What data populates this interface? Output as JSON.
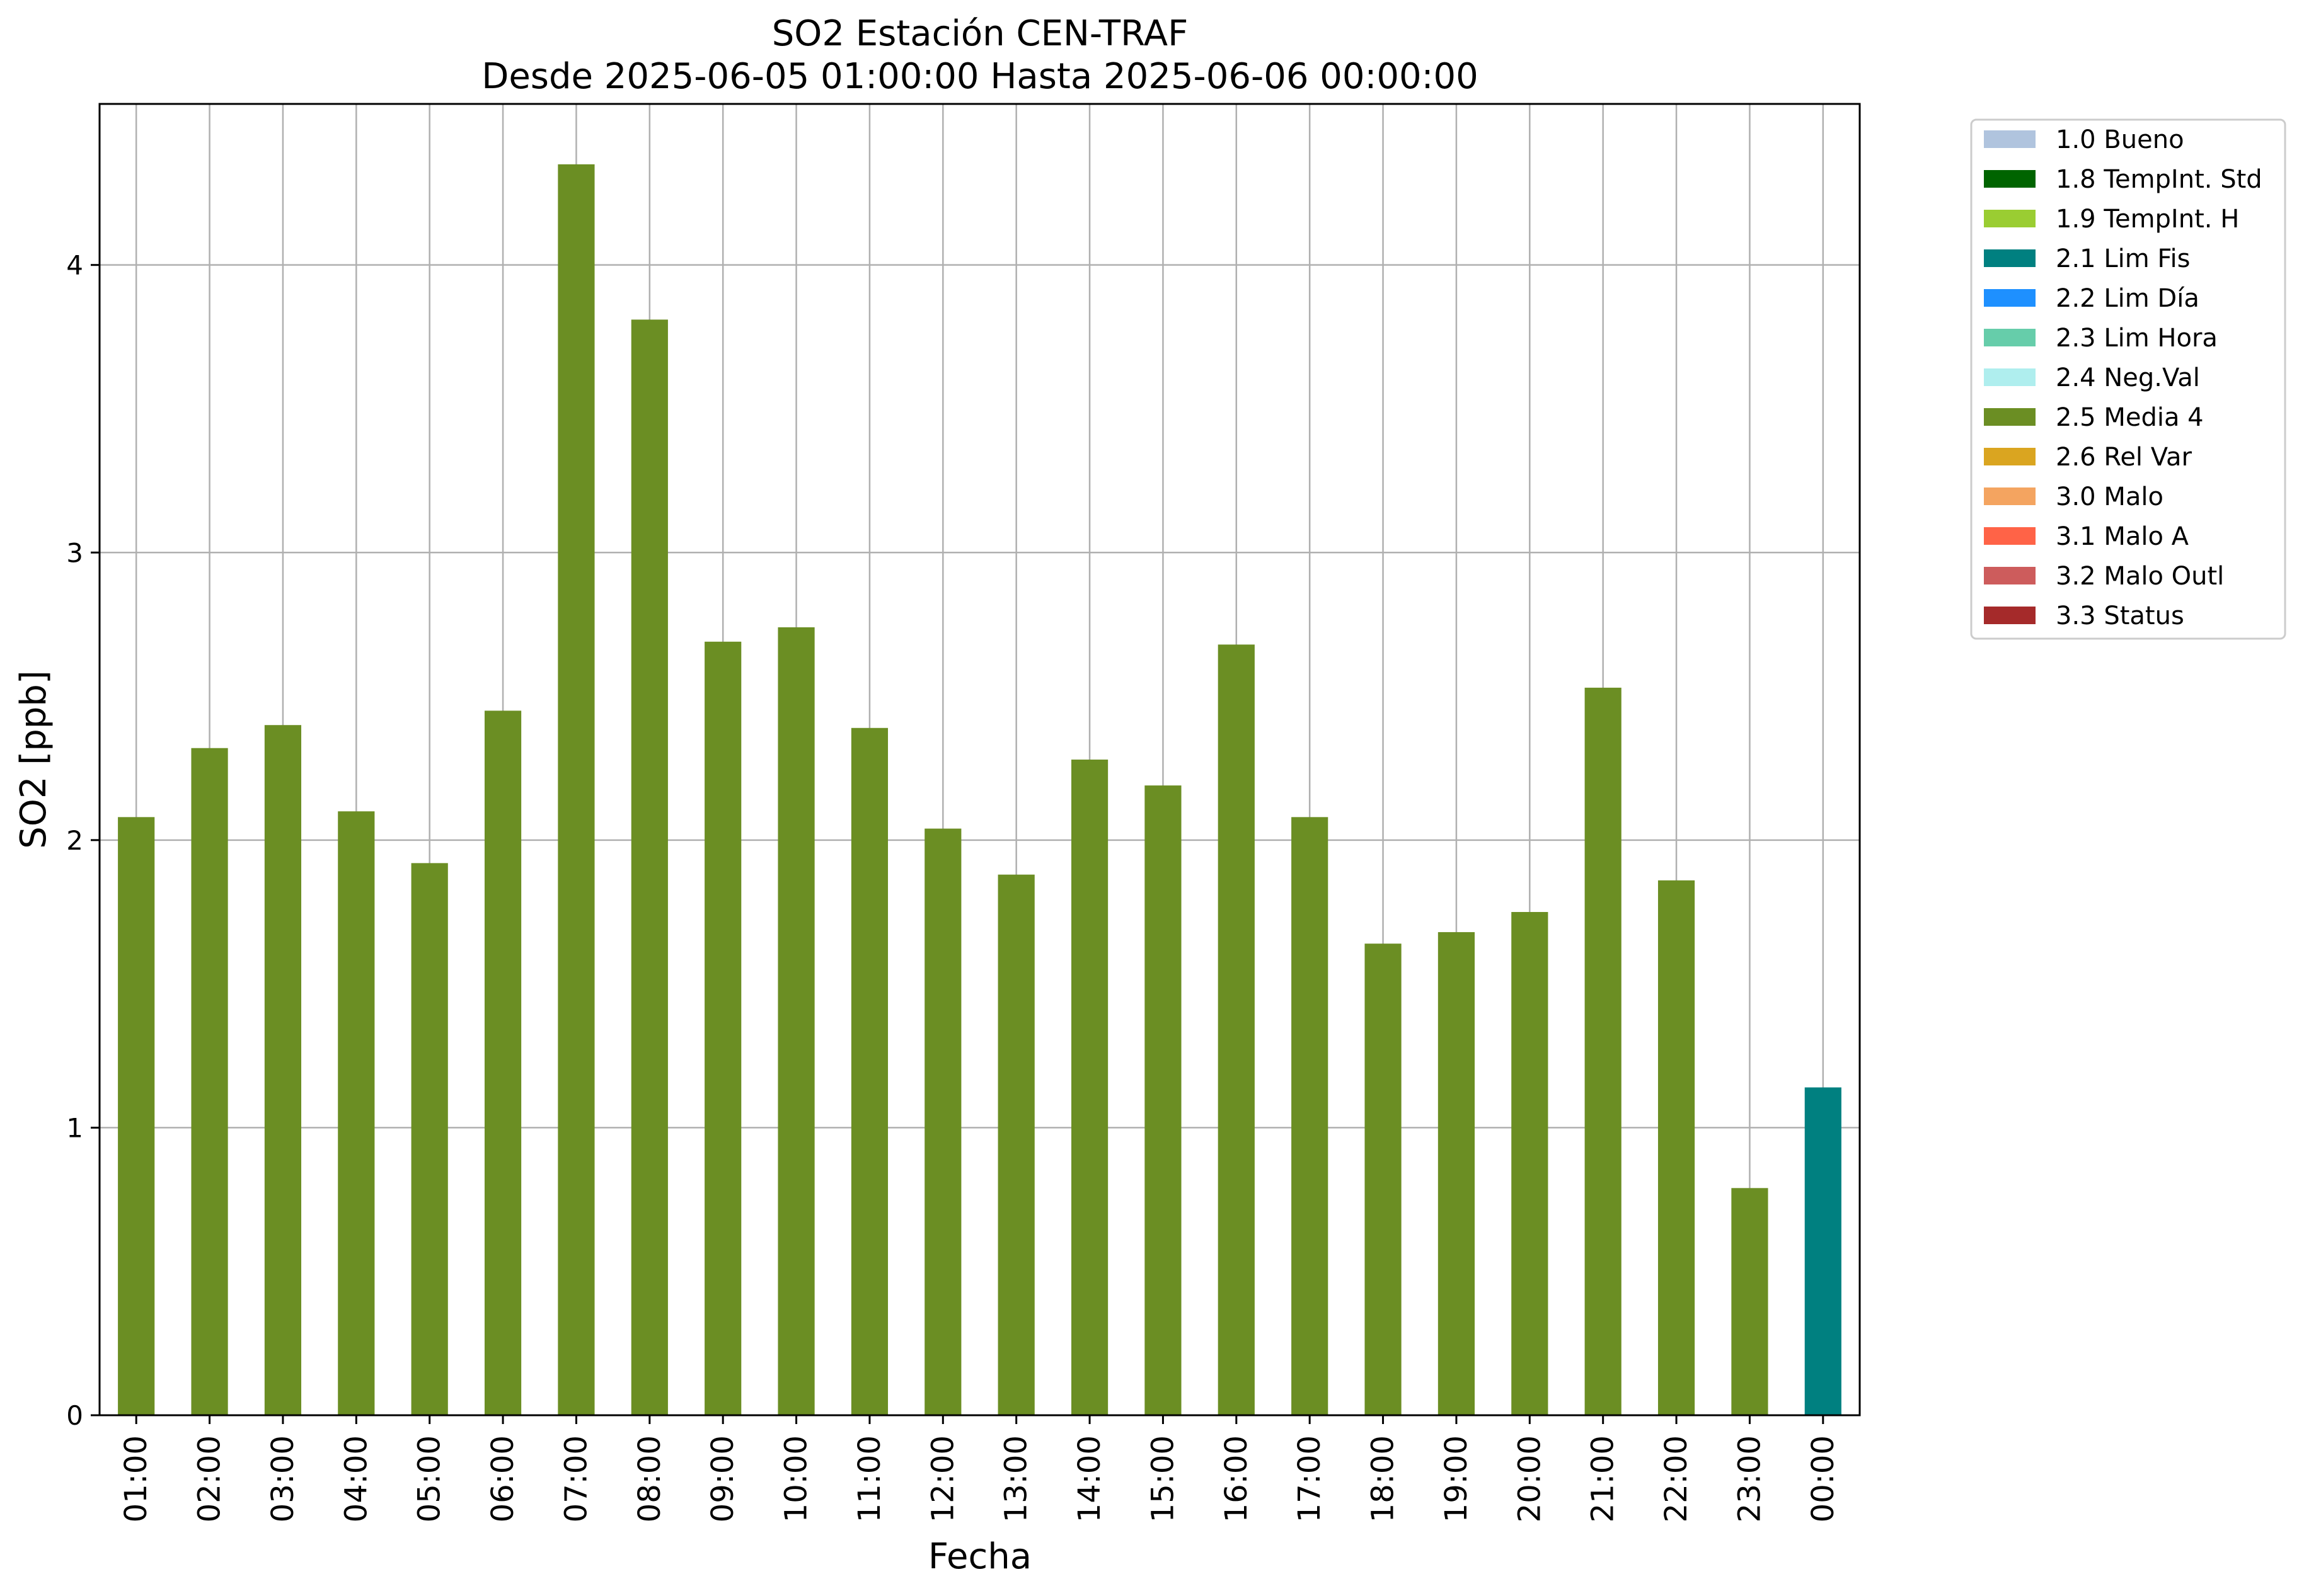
{
  "chart_data": {
    "type": "bar",
    "title": "SO2 Estación CEN-TRAF",
    "subtitle": "Desde 2025-06-05 01:00:00 Hasta 2025-06-06 00:00:00",
    "xlabel": "Fecha",
    "ylabel": "SO2 [ppb]",
    "ylim": [
      0,
      4.56
    ],
    "yticks": [
      "0",
      "1",
      "2",
      "3",
      "4"
    ],
    "grid": true,
    "legend_position": "outside top-right",
    "categories": [
      "01:00",
      "02:00",
      "03:00",
      "04:00",
      "05:00",
      "06:00",
      "07:00",
      "08:00",
      "09:00",
      "10:00",
      "11:00",
      "12:00",
      "13:00",
      "14:00",
      "15:00",
      "16:00",
      "17:00",
      "18:00",
      "19:00",
      "20:00",
      "21:00",
      "22:00",
      "23:00",
      "00:00"
    ],
    "values": [
      2.08,
      2.32,
      2.4,
      2.1,
      1.92,
      2.45,
      4.35,
      3.81,
      2.69,
      2.74,
      2.39,
      2.04,
      1.88,
      2.28,
      2.19,
      2.68,
      2.08,
      1.64,
      1.68,
      1.75,
      2.53,
      1.86,
      0.79,
      1.14
    ],
    "bar_flags": [
      "2.5 Media 4",
      "2.5 Media 4",
      "2.5 Media 4",
      "2.5 Media 4",
      "2.5 Media 4",
      "2.5 Media 4",
      "2.5 Media 4",
      "2.5 Media 4",
      "2.5 Media 4",
      "2.5 Media 4",
      "2.5 Media 4",
      "2.5 Media 4",
      "2.5 Media 4",
      "2.5 Media 4",
      "2.5 Media 4",
      "2.5 Media 4",
      "2.5 Media 4",
      "2.5 Media 4",
      "2.5 Media 4",
      "2.5 Media 4",
      "2.5 Media 4",
      "2.5 Media 4",
      "2.5 Media 4",
      "2.1 Lim Fis"
    ],
    "legend": [
      {
        "label": "1.0 Bueno",
        "color": "#b0c4de"
      },
      {
        "label": "1.8 TempInt. Std",
        "color": "#006400"
      },
      {
        "label": "1.9 TempInt. H",
        "color": "#9acd32"
      },
      {
        "label": "2.1 Lim Fis",
        "color": "#008080"
      },
      {
        "label": "2.2 Lim Día",
        "color": "#1e90ff"
      },
      {
        "label": "2.3 Lim Hora",
        "color": "#66cdaa"
      },
      {
        "label": "2.4 Neg.Val",
        "color": "#afeeee"
      },
      {
        "label": "2.5 Media 4",
        "color": "#6b8e23"
      },
      {
        "label": "2.6 Rel Var",
        "color": "#daa520"
      },
      {
        "label": "3.0 Malo",
        "color": "#f4a460"
      },
      {
        "label": "3.1 Malo A",
        "color": "#ff6347"
      },
      {
        "label": "3.2 Malo Outl",
        "color": "#cd5c5c"
      },
      {
        "label": "3.3 Status",
        "color": "#a52a2a"
      }
    ]
  }
}
